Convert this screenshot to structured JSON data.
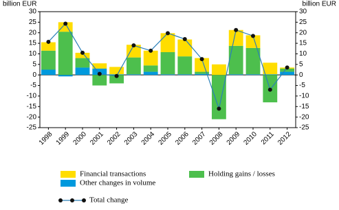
{
  "chart_data": {
    "type": "bar",
    "stacked": true,
    "ylabel": "billion EUR",
    "y2label": "billion EUR",
    "categories": [
      "1998",
      "1999",
      "2000",
      "2001",
      "2002",
      "2003",
      "2004",
      "2005",
      "2006",
      "2007",
      "2008",
      "2009",
      "2010",
      "2011",
      "2012"
    ],
    "series": [
      {
        "name": "Other changes in volume",
        "color": "#0099dd",
        "values": [
          2.5,
          -0.7,
          3.5,
          3,
          0.3,
          0.3,
          1.5,
          0.3,
          0.3,
          0.5,
          0,
          0.3,
          0.3,
          0.3,
          1.5
        ]
      },
      {
        "name": "Holding gains / losses",
        "color": "#4dbf4d",
        "values": [
          9,
          20.5,
          4.5,
          -5,
          -4,
          8,
          3,
          10.5,
          8.5,
          1,
          -21,
          13.5,
          12.5,
          -13,
          1.5
        ]
      },
      {
        "name": "Financial transactions",
        "color": "#ffdd00",
        "values": [
          4,
          4.5,
          2.5,
          2.5,
          3.5,
          6,
          7,
          9,
          8,
          6.5,
          5,
          7.5,
          6,
          5.5,
          0.5
        ]
      },
      {
        "name": "Total change",
        "type": "line",
        "color": "#2a7fb8",
        "values": [
          15.7,
          24.3,
          10.5,
          0.5,
          -0.5,
          14,
          11.5,
          19.8,
          17,
          7.5,
          -16,
          21.3,
          18.5,
          -7,
          3.5
        ]
      }
    ],
    "ylim": [
      -25,
      30
    ],
    "yticks": [
      -25,
      -20,
      -15,
      -10,
      -5,
      0,
      5,
      10,
      15,
      20,
      25,
      30
    ],
    "y2lim": [
      -25,
      30
    ],
    "y2ticks": [
      -25,
      -20,
      -15,
      -10,
      -5,
      0,
      5,
      10,
      15,
      20,
      25,
      30
    ],
    "grid": false
  }
}
